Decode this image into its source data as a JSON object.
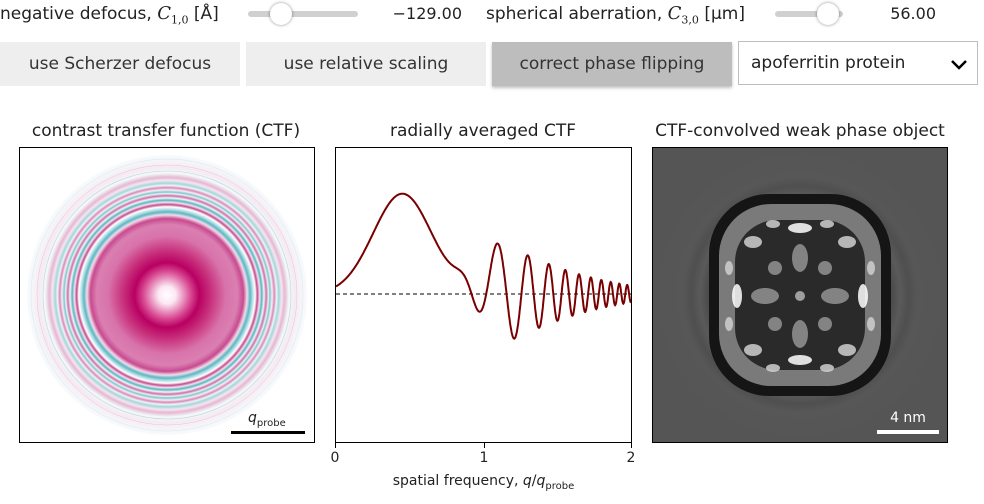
{
  "controls": {
    "defocus": {
      "label_prefix": "negative defocus, ",
      "symbol": "C",
      "sub": "1,0",
      "unit": "[Å]",
      "value": "−129.00",
      "level": 0.3
    },
    "aberration": {
      "label_prefix": "spherical aberration, ",
      "symbol": "C",
      "sub": "3,0",
      "unit": "[μm]",
      "value": "56.00",
      "level": 0.78
    }
  },
  "buttons": {
    "scherzer": "use Scherzer defocus",
    "relative": "use relative scaling",
    "phase": "correct phase flipping"
  },
  "select": {
    "value": "apoferritin protein"
  },
  "panels": {
    "ctf_title": "contrast transfer function (CTF)",
    "radial_title": "radially averaged CTF",
    "wpo_title": "CTF-convolved weak phase object",
    "scalebar_q_symbol": "q",
    "scalebar_q_sub": "probe",
    "scalebar_nm": "4 nm"
  },
  "chart_data": {
    "type": "line",
    "title": "radially averaged CTF",
    "xlabel_symbol": "q",
    "xlabel_text": "spatial frequency, ",
    "xlabel_sep": "/",
    "xlabel_sub": "probe",
    "xticks": [
      "0",
      "1",
      "2"
    ],
    "xlim": [
      0,
      2
    ],
    "line_color": "#7a0000",
    "baseline": 0
  },
  "colors": {
    "ctf_magenta": "#c0006a",
    "ctf_cyan": "#5ab8c4",
    "curve": "#7a0000"
  }
}
